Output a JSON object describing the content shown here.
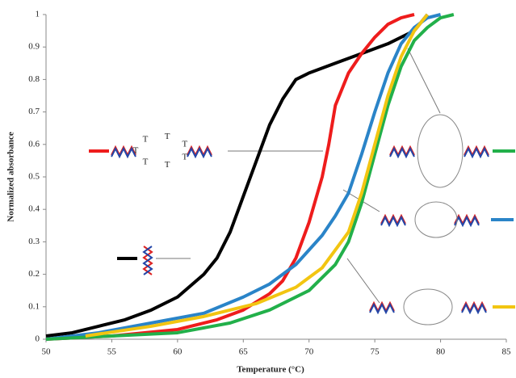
{
  "chart_data": {
    "type": "line",
    "x_label": "Temperature (°C)",
    "y_label": "Normalized absorbance",
    "xlim": [
      50,
      85
    ],
    "xticks": [
      50,
      55,
      60,
      65,
      70,
      75,
      80,
      85
    ],
    "ylim": [
      0,
      1
    ],
    "yticks": [
      0,
      0.1,
      0.2,
      0.3,
      0.4,
      0.5,
      0.6,
      0.7,
      0.8,
      0.9,
      1
    ],
    "grid": false,
    "loop_labels": [
      "T",
      "T",
      "T",
      "T",
      "T",
      "T",
      "T"
    ],
    "series": [
      {
        "color": "#000000",
        "x": [
          50,
          52,
          54,
          56,
          58,
          60,
          62,
          63,
          64,
          65,
          66,
          67,
          68,
          69,
          70,
          72,
          74,
          76,
          78,
          79
        ],
        "values": [
          0.01,
          0.02,
          0.04,
          0.06,
          0.09,
          0.13,
          0.2,
          0.25,
          0.33,
          0.44,
          0.55,
          0.66,
          0.74,
          0.8,
          0.82,
          0.85,
          0.88,
          0.91,
          0.95,
          1
        ]
      },
      {
        "color": "#ee1c1c",
        "x": [
          50,
          55,
          60,
          63,
          65,
          67,
          68,
          69,
          70,
          71,
          71.5,
          72,
          73,
          74,
          75,
          76,
          77,
          78
        ],
        "values": [
          0,
          0.01,
          0.03,
          0.06,
          0.09,
          0.14,
          0.18,
          0.25,
          0.36,
          0.5,
          0.6,
          0.72,
          0.82,
          0.88,
          0.93,
          0.97,
          0.99,
          1
        ]
      },
      {
        "color": "#2a84c8",
        "x": [
          50,
          54,
          58,
          62,
          65,
          67,
          69,
          71,
          72,
          73,
          74,
          75,
          76,
          77,
          78,
          79,
          80
        ],
        "values": [
          0,
          0.02,
          0.05,
          0.08,
          0.13,
          0.17,
          0.23,
          0.32,
          0.38,
          0.45,
          0.57,
          0.7,
          0.82,
          0.91,
          0.96,
          0.99,
          1
        ]
      },
      {
        "color": "#22b04a",
        "x": [
          50,
          55,
          60,
          64,
          67,
          70,
          72,
          73,
          74,
          75,
          76,
          77,
          78,
          79,
          80,
          81
        ],
        "values": [
          0,
          0.01,
          0.02,
          0.05,
          0.09,
          0.15,
          0.23,
          0.3,
          0.42,
          0.57,
          0.72,
          0.84,
          0.92,
          0.96,
          0.99,
          1
        ]
      },
      {
        "color": "#f2c511",
        "x": [
          53,
          58,
          62,
          66,
          69,
          71,
          73,
          74,
          75,
          76,
          77,
          78,
          79
        ],
        "values": [
          0.01,
          0.04,
          0.07,
          0.11,
          0.16,
          0.22,
          0.33,
          0.45,
          0.6,
          0.75,
          0.87,
          0.95,
          1
        ]
      }
    ]
  }
}
